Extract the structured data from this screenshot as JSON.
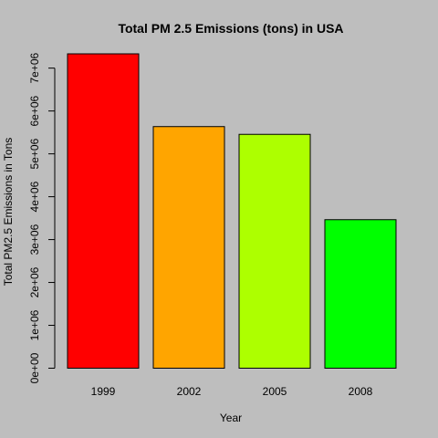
{
  "chart_data": {
    "type": "bar",
    "title": "Total PM 2.5 Emissions (tons) in USA",
    "xlabel": "Year",
    "ylabel": "Total PM2.5 Emissions in Tons",
    "categories": [
      "1999",
      "2002",
      "2005",
      "2008"
    ],
    "values": [
      7332967,
      5635780,
      5454703,
      3464206
    ],
    "bar_colors": [
      "#ff0000",
      "#ffa500",
      "#adff00",
      "#00ff00"
    ],
    "ylim": [
      0,
      7500000
    ],
    "yticks": [
      0,
      1000000,
      2000000,
      3000000,
      4000000,
      5000000,
      6000000,
      7000000
    ],
    "ytick_labels": [
      "0e+00",
      "1e+06",
      "2e+06",
      "3e+06",
      "4e+06",
      "5e+06",
      "6e+06",
      "7e+06"
    ],
    "background": "#bebebe",
    "grid": false,
    "legend": "none"
  }
}
